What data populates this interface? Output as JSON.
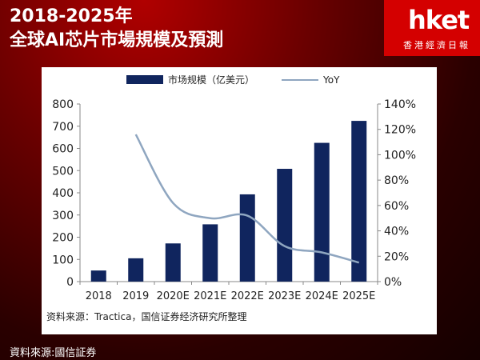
{
  "header": {
    "title_line1": "2018-2025年",
    "title_line2": "全球AI芯片市場規模及預測"
  },
  "logo": {
    "main": "hket",
    "sub": "香港經濟日報"
  },
  "footer": {
    "source": "資料來源:國信証券"
  },
  "colors": {
    "bar": "#10255e",
    "line": "#8fa6c0",
    "accent": "#d40000"
  },
  "chart_data": {
    "type": "bar",
    "categories": [
      "2018",
      "2019",
      "2020E",
      "2021E",
      "2022E",
      "2023E",
      "2024E",
      "2025E"
    ],
    "series": [
      {
        "name": "市场规模（亿美元）",
        "type": "bar",
        "axis": "left",
        "values": [
          50,
          105,
          172,
          258,
          393,
          508,
          625,
          724
        ]
      },
      {
        "name": "YoY",
        "type": "line",
        "axis": "right",
        "values": [
          null,
          116,
          62,
          50,
          52,
          28,
          23,
          15
        ]
      }
    ],
    "y_left": {
      "min": 0,
      "max": 800,
      "ticks": [
        "0",
        "100",
        "200",
        "300",
        "400",
        "500",
        "600",
        "700",
        "800"
      ]
    },
    "y_right": {
      "min": 0,
      "max": 140,
      "ticks": [
        "0%",
        "20%",
        "40%",
        "60%",
        "80%",
        "100%",
        "120%",
        "140%"
      ]
    },
    "legend_position": "top",
    "grid": false,
    "note": "资料来源：Tractica，国信证券经济研究所整理"
  }
}
